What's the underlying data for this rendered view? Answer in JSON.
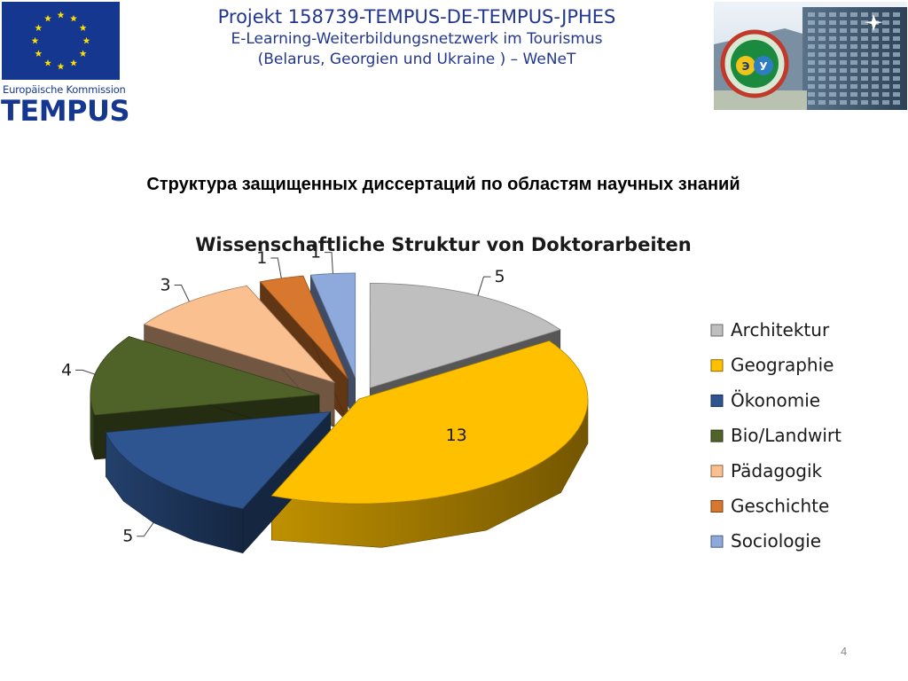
{
  "header": {
    "eu_commission": "Europäische Kommission",
    "tempus": "TEMPUS",
    "project_line1": "Projekt 158739-TEMPUS-DE-TEMPUS-JPHES",
    "project_line2": "E-Learning-Weiterbildungsnetzwerk im Tourismus",
    "project_line3": "(Belarus, Georgien und Ukraine ) – WeNeT"
  },
  "slide_title_ru": "Структура защищенных диссертаций по областям научных знаний",
  "page_number": "4",
  "colors": {
    "eu_blue": "#15378f",
    "project_text": "#23378d"
  },
  "chart_data": {
    "type": "pie",
    "style": "3d-exploded",
    "title": "Wissenschaftliche Struktur von Doktorarbeiten",
    "legend_position": "right",
    "slices": [
      {
        "label": "Architektur",
        "value": 5,
        "color": "#bfbfbf"
      },
      {
        "label": "Geographie",
        "value": 13,
        "color": "#ffc000"
      },
      {
        "label": "Ökonomie",
        "value": 5,
        "color": "#2e5590"
      },
      {
        "label": "Bio/Landwirt",
        "value": 4,
        "color": "#4f6228"
      },
      {
        "label": "Pädagogik",
        "value": 3,
        "color": "#fac090"
      },
      {
        "label": "Geschichte",
        "value": 1,
        "color": "#d8782e"
      },
      {
        "label": "Sociologie",
        "value": 1,
        "color": "#8ea9db"
      }
    ]
  }
}
